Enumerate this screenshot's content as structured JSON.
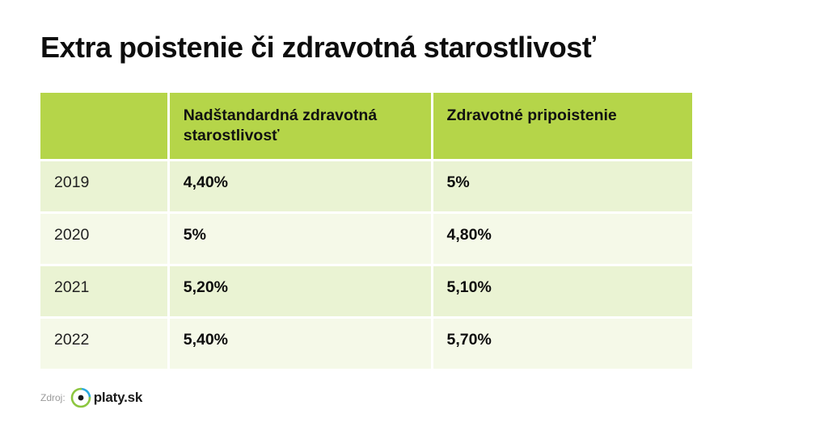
{
  "title": "Extra poistenie či zdravotná starostlivosť",
  "colors": {
    "header_bg": "#b5d549",
    "row_odd_bg": "#eaf3d3",
    "row_even_bg": "#f5f9e8",
    "logo_ring_green": "#8cc63f",
    "logo_ring_blue": "#29a9e0"
  },
  "chart_data": {
    "type": "table",
    "columns": [
      "",
      "Nadštandardná zdravotná starostlivosť",
      "Zdravotné pripoistenie"
    ],
    "rows": [
      {
        "year": "2019",
        "values": [
          "4,40%",
          "5%"
        ]
      },
      {
        "year": "2020",
        "values": [
          "5%",
          "4,80%"
        ]
      },
      {
        "year": "2021",
        "values": [
          "5,20%",
          "5,10%"
        ]
      },
      {
        "year": "2022",
        "values": [
          "5,40%",
          "5,70%"
        ]
      }
    ]
  },
  "source": {
    "label": "Zdroj:",
    "logo_text": "platy.sk",
    "logo_icon": "platy-ring-logo-icon"
  }
}
